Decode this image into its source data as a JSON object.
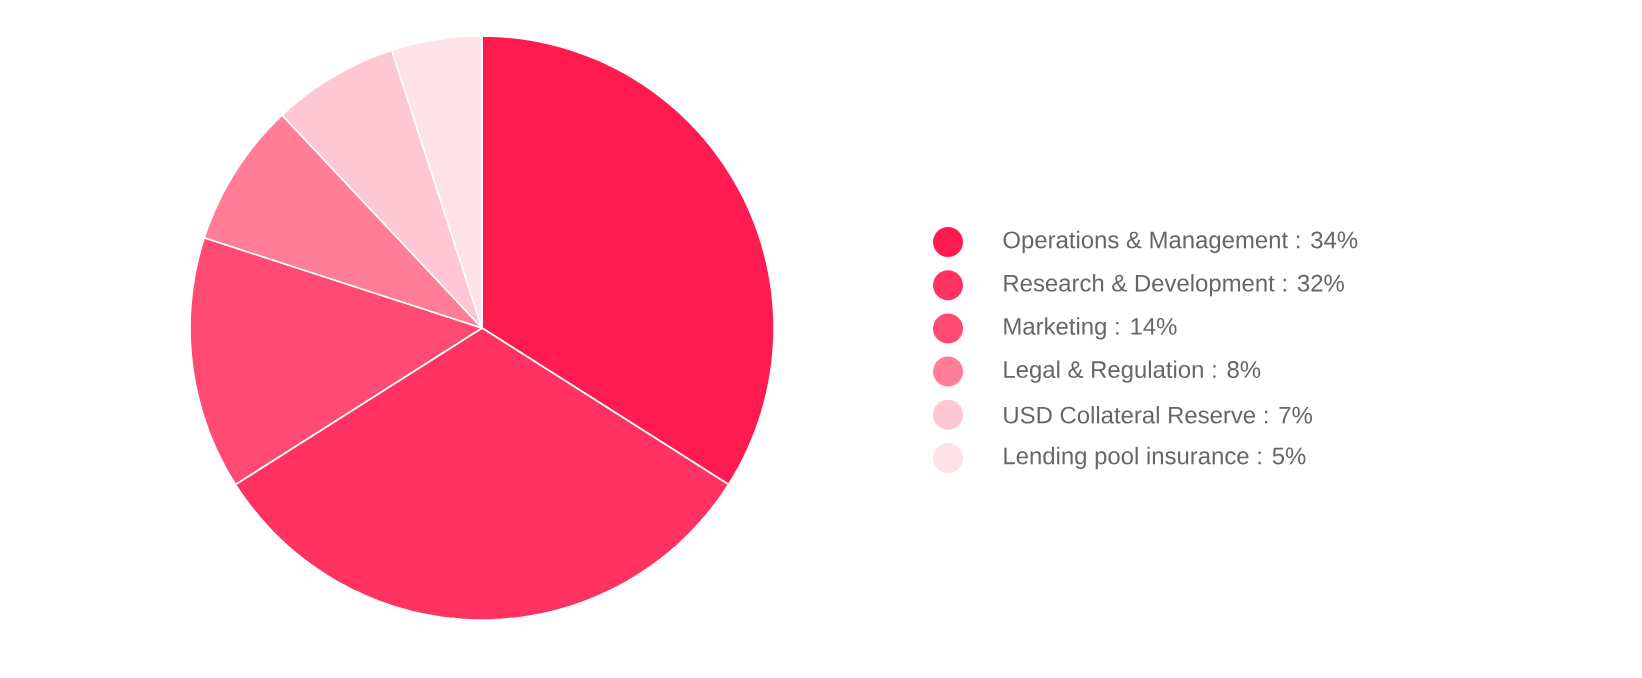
{
  "chart_data": {
    "type": "pie",
    "categories": [
      "Operations & Management : 34%",
      "Research & Development : 32%",
      "Marketing : 14%",
      "Legal & Regulation : 8%",
      "USD Collateral Reserve : 7%",
      "Lending pool insurance : 5%"
    ],
    "values": [
      34,
      32,
      14,
      8,
      7,
      5
    ],
    "colors": [
      "#ff1a4f",
      "#ff3262",
      "#ff4b73",
      "#ff7d97",
      "#ffc7d3",
      "#ffe1e8"
    ],
    "legend": "right"
  }
}
